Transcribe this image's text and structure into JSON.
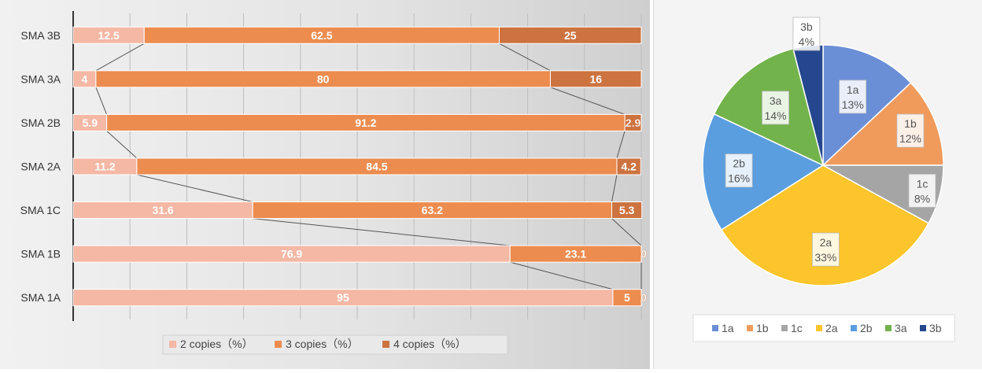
{
  "chart_data": [
    {
      "type": "bar",
      "orientation": "horizontal",
      "stacked": true,
      "normalized_percent": true,
      "categories": [
        "SMA 1A",
        "SMA 1B",
        "SMA 1C",
        "SMA 2A",
        "SMA 2B",
        "SMA 3A",
        "SMA 3B"
      ],
      "series": [
        {
          "name": "2 copies（%）",
          "color": "#f4b8a5",
          "values": [
            95,
            76.9,
            31.6,
            11.2,
            5.9,
            4,
            12.5
          ]
        },
        {
          "name": "3 copies（%）",
          "color": "#ec8c4f",
          "values": [
            5,
            23.1,
            63.2,
            84.5,
            91.2,
            80,
            62.5
          ]
        },
        {
          "name": "4 copies（%）",
          "color": "#cd7340",
          "values": [
            0,
            0,
            5.3,
            4.2,
            2.9,
            16,
            25
          ]
        }
      ],
      "xlim": [
        0,
        100
      ],
      "grid": true,
      "series_lines": true,
      "legend_position": "bottom"
    },
    {
      "type": "pie",
      "labels": [
        "1a",
        "1b",
        "1c",
        "2a",
        "2b",
        "3a",
        "3b"
      ],
      "values": [
        13,
        12,
        8,
        33,
        16,
        14,
        4
      ],
      "data_labels": [
        "13%",
        "12%",
        "8%",
        "33%",
        "16%",
        "14%",
        "4%"
      ],
      "colors": [
        "#6b8fd6",
        "#f09b5c",
        "#a5a5a5",
        "#fbc52b",
        "#5b9ee0",
        "#72b34b",
        "#24478f"
      ],
      "start_angle_deg": 0,
      "direction": "clockwise",
      "legend_position": "bottom"
    }
  ]
}
